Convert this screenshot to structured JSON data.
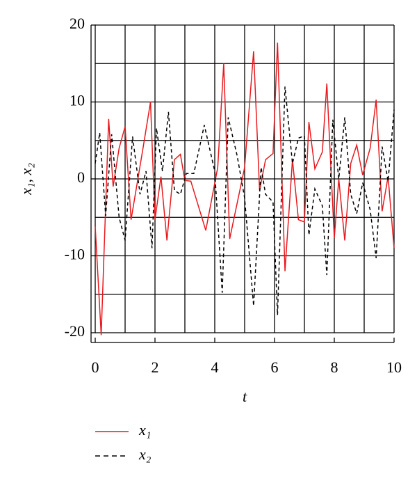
{
  "chart_data": {
    "type": "line",
    "x_label": "t",
    "y_label": "x₁, x₂",
    "xlim": [
      0,
      10
    ],
    "ylim": [
      -20,
      20
    ],
    "xticks": [
      0,
      2,
      4,
      6,
      8,
      10
    ],
    "yticks": [
      -20,
      -10,
      0,
      10,
      20
    ],
    "xgrid": [
      0,
      1,
      2,
      3,
      4,
      5,
      6,
      7,
      8,
      9,
      10
    ],
    "ygrid": [
      -20,
      -15,
      -10,
      -5,
      0,
      5,
      10,
      15,
      20
    ],
    "series": [
      {
        "name": "x₁",
        "color": "#e8191e",
        "dash": false,
        "x": [
          0,
          0.2,
          0.45,
          0.6,
          0.8,
          1.0,
          1.2,
          1.6,
          1.85,
          2.0,
          2.2,
          2.4,
          2.65,
          2.85,
          3.0,
          3.2,
          3.7,
          4.1,
          4.3,
          4.5,
          5.0,
          5.3,
          5.5,
          5.7,
          5.95,
          6.1,
          6.35,
          6.6,
          6.8,
          7.0,
          7.15,
          7.35,
          7.6,
          7.75,
          8.0,
          8.15,
          8.35,
          8.55,
          8.75,
          8.95,
          9.2,
          9.4,
          9.6,
          9.8,
          10.0
        ],
        "values": [
          -6.2,
          -20.3,
          7.8,
          -1,
          4,
          6.8,
          -5.3,
          4,
          10,
          -5.3,
          0.3,
          -8,
          2.5,
          3.2,
          -0.2,
          -0.3,
          -6.7,
          1.5,
          15,
          -7.8,
          1.5,
          16.6,
          -1.5,
          2.5,
          3.3,
          17.7,
          -12,
          2.5,
          -5.3,
          -5.6,
          7.4,
          1.3,
          3.5,
          12.4,
          -7.7,
          0,
          -8,
          2,
          4.4,
          0.5,
          4,
          10.3,
          -4.2,
          0.3,
          -9
        ]
      },
      {
        "name": "x₂",
        "color": "#000000",
        "dash": true,
        "x": [
          0,
          0.15,
          0.35,
          0.55,
          0.8,
          1.0,
          1.25,
          1.5,
          1.7,
          1.9,
          2.05,
          2.25,
          2.45,
          2.65,
          2.85,
          3.05,
          3.3,
          3.65,
          4.0,
          4.25,
          4.45,
          4.75,
          5.0,
          5.3,
          5.55,
          5.7,
          5.95,
          6.1,
          6.35,
          6.6,
          6.8,
          7.0,
          7.15,
          7.35,
          7.6,
          7.75,
          7.95,
          8.15,
          8.35,
          8.55,
          8.75,
          8.95,
          9.2,
          9.4,
          9.6,
          9.8,
          10.0
        ],
        "values": [
          2,
          6,
          -4.8,
          5.8,
          -5,
          -8,
          5.5,
          -2,
          1,
          -9,
          6.6,
          1,
          8.7,
          -1.5,
          -2,
          0.7,
          0.7,
          7,
          1,
          -14.8,
          8,
          3,
          -2.5,
          -16.5,
          1.5,
          -2,
          -3,
          -17.7,
          12,
          2,
          5.3,
          5.6,
          -7.3,
          -1.3,
          -3.5,
          -12.5,
          7.7,
          0,
          8,
          -2,
          -4.5,
          -0.5,
          -4,
          -10.3,
          4.2,
          -0.3,
          9
        ]
      }
    ]
  }
}
